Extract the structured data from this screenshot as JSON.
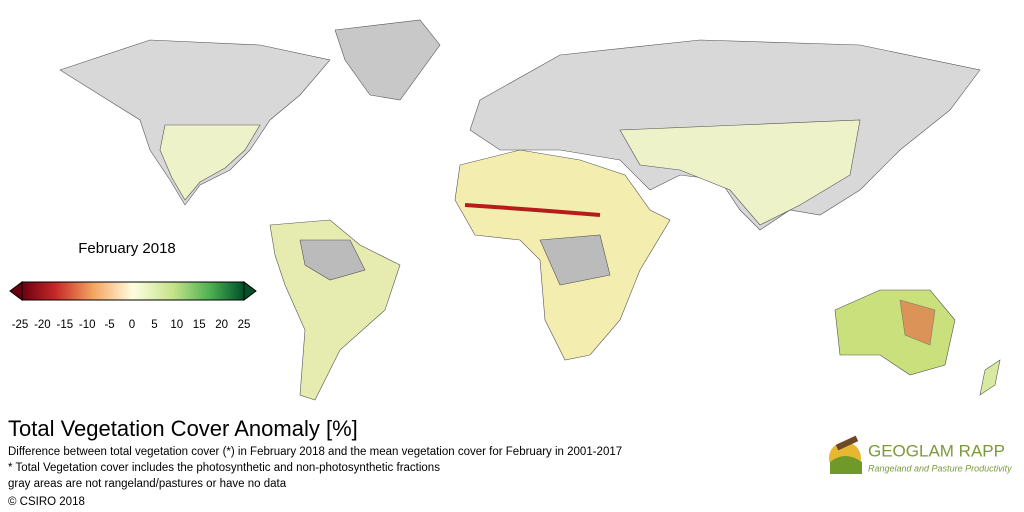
{
  "legend": {
    "title": "February 2018",
    "ticks": [
      -25,
      -20,
      -15,
      -10,
      -5,
      0,
      5,
      10,
      15,
      20,
      25
    ]
  },
  "title": "Total Vegetation Cover Anomaly [%]",
  "description": [
    "Difference between total vegetation cover (*) in February 2018 and the mean vegetation cover for February in 2001-2017",
    "* Total Vegetation cover includes the photosynthetic and non-photosynthetic fractions",
    "gray areas are not rangeland/pastures or have no data"
  ],
  "copyright": "© CSIRO 2018",
  "logo": {
    "name": "GEOGLAM RAPP",
    "tagline": "Rangeland and Pasture Productivity"
  }
}
